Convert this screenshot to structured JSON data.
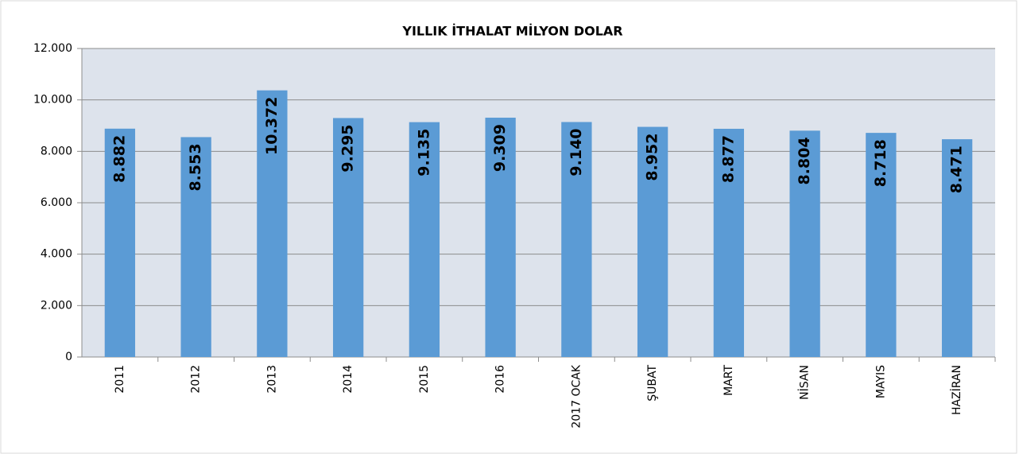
{
  "chart_data": {
    "type": "bar",
    "title": "YILLIK İTHALAT MİLYON DOLAR",
    "categories": [
      "2011",
      "2012",
      "2013",
      "2014",
      "2015",
      "2016",
      "2017 OCAK",
      "ŞUBAT",
      "MART",
      "NİSAN",
      "MAYIS",
      "HAZİRAN"
    ],
    "values": [
      8882,
      8553,
      10372,
      9295,
      9135,
      9309,
      9140,
      8952,
      8877,
      8804,
      8718,
      8471
    ],
    "value_labels": [
      "8.882",
      "8.553",
      "10.372",
      "9.295",
      "9.135",
      "9.309",
      "9.140",
      "8.952",
      "8.877",
      "8.804",
      "8.718",
      "8.471"
    ],
    "color": "#5b9bd5",
    "ylim": [
      0,
      12000
    ],
    "yticks": [
      0,
      {
        "value": 2000,
        "label": "2.000"
      },
      {
        "value": 4000,
        "label": "4.000"
      },
      {
        "value": 6000,
        "label": "6.000"
      },
      {
        "value": 8000,
        "label": "8.000"
      },
      {
        "value": 10000,
        "label": "10.000"
      },
      {
        "value": 12000,
        "label": "12.000"
      }
    ],
    "grid": true
  }
}
